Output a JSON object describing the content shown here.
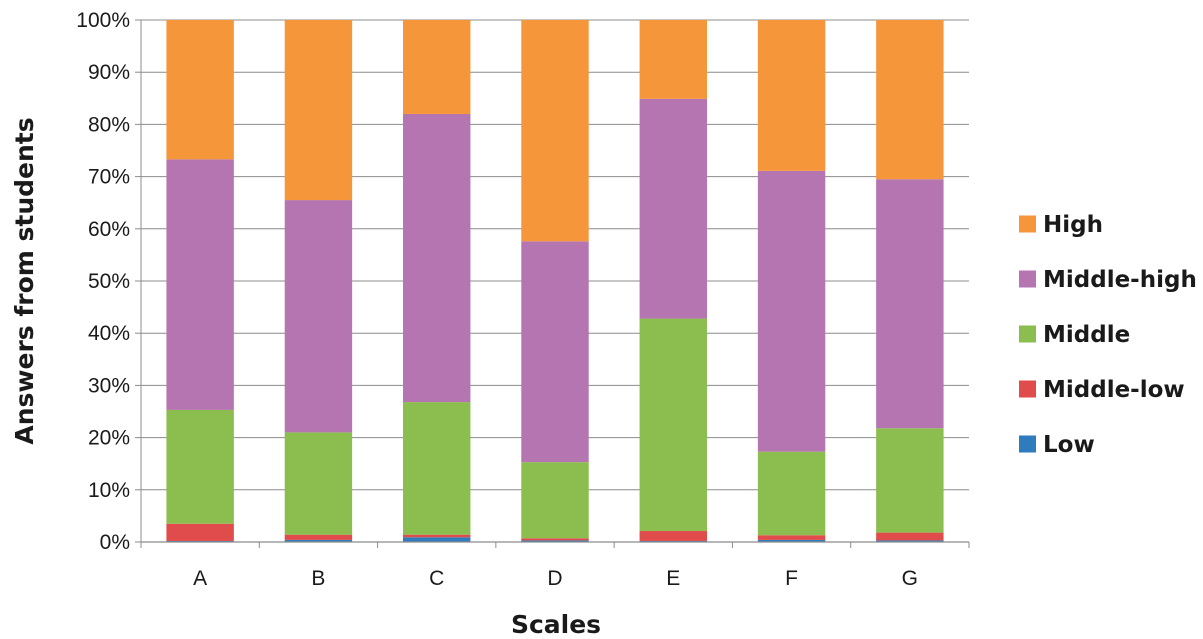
{
  "chart_data": {
    "type": "bar",
    "stacked": true,
    "categories": [
      "A",
      "B",
      "C",
      "D",
      "E",
      "F",
      "G"
    ],
    "series": [
      {
        "name": "Low",
        "color": "#2e7bbd",
        "values": [
          0.2,
          0.4,
          0.9,
          0.3,
          0.2,
          0.4,
          0.3
        ]
      },
      {
        "name": "Middle-low",
        "color": "#e04b4b",
        "values": [
          3.3,
          1.0,
          0.5,
          0.4,
          1.9,
          0.9,
          1.5
        ]
      },
      {
        "name": "Middle",
        "color": "#8bbd4f",
        "values": [
          21.8,
          19.6,
          25.4,
          14.6,
          40.7,
          16.0,
          20.0
        ]
      },
      {
        "name": "Middle-high",
        "color": "#b475b0",
        "values": [
          48.0,
          44.5,
          55.2,
          42.3,
          42.1,
          53.8,
          47.7
        ]
      },
      {
        "name": "High",
        "color": "#f6963a",
        "values": [
          26.7,
          34.5,
          18.0,
          42.4,
          15.1,
          28.9,
          30.5
        ]
      }
    ],
    "y_ticks": [
      "0%",
      "10%",
      "20%",
      "30%",
      "40%",
      "50%",
      "60%",
      "70%",
      "80%",
      "90%",
      "100%"
    ],
    "ylim": [
      0,
      100
    ],
    "xlabel": "Scales",
    "ylabel": "Answers from students",
    "legend_order": [
      "High",
      "Middle-high",
      "Middle",
      "Middle-low",
      "Low"
    ],
    "legend_position": "right",
    "grid": true,
    "grid_color": "#8c8c8c"
  }
}
